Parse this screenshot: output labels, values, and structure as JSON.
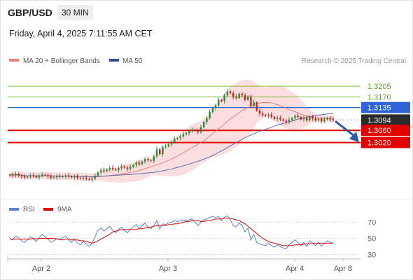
{
  "header": {
    "pair": "GBP/USD",
    "timeframe": "30 MIN",
    "timestamp": "Friday, April 4, 2025 7:11:55 AM CET"
  },
  "legend": {
    "ma20_label": "MA 20 + Bollinger Bands",
    "ma50_label": "MA 50",
    "credit": "Research © 2025 Trading Central"
  },
  "colors": {
    "bull_candle": "#2e8b3a",
    "bear_candle": "#c62828",
    "bollinger_fill": "#fcdada",
    "ma20": "#f08080",
    "ma50": "#5a6fb5",
    "target_green": "#7cc13a",
    "pivot_blue": "#2f63d6",
    "support_red": "#e00000",
    "rsi": "#5b84d6",
    "rsi_ma": "#e00000",
    "arrow": "#2f5aa8"
  },
  "chart_data": [
    {
      "type": "candlestick",
      "title": "",
      "ylim": [
        1.284,
        1.3265
      ],
      "x_ticks": [
        "Apr 2",
        "Apr 3",
        "Apr 4",
        "Apr 8"
      ],
      "price_levels": [
        {
          "label": "1.3205",
          "value": 1.3205,
          "kind": "resistance"
        },
        {
          "label": "1.3170",
          "value": 1.317,
          "kind": "resistance"
        },
        {
          "label": "1.3135",
          "value": 1.3135,
          "kind": "pivot"
        },
        {
          "label": "1.3094",
          "value": 1.3094,
          "kind": "last_price"
        },
        {
          "label": "1.3060",
          "value": 1.306,
          "kind": "support"
        },
        {
          "label": "1.3020",
          "value": 1.302,
          "kind": "support"
        }
      ],
      "series": [
        {
          "name": "MA 20 + Bollinger Bands",
          "style": "line+band"
        },
        {
          "name": "MA 50",
          "style": "line"
        }
      ],
      "close": [
        1.2915,
        1.2912,
        1.2917,
        1.2911,
        1.2909,
        1.2905,
        1.2908,
        1.2912,
        1.291,
        1.2906,
        1.2911,
        1.2915,
        1.2913,
        1.2909,
        1.2904,
        1.2906,
        1.291,
        1.2907,
        1.2909,
        1.2912,
        1.2908,
        1.2906,
        1.2909,
        1.2904,
        1.2902,
        1.2905,
        1.2901,
        1.2898,
        1.2902,
        1.2911,
        1.2922,
        1.293,
        1.2926,
        1.2932,
        1.2937,
        1.2933,
        1.293,
        1.2936,
        1.2942,
        1.2938,
        1.2934,
        1.294,
        1.2946,
        1.2954,
        1.2949,
        1.2958,
        1.2966,
        1.2962,
        1.296,
        1.2975,
        1.2998,
        1.2982,
        1.3005,
        1.3008,
        1.3014,
        1.3022,
        1.3032,
        1.3035,
        1.304,
        1.3047,
        1.3051,
        1.3057,
        1.3062,
        1.306,
        1.3055,
        1.307,
        1.3087,
        1.31,
        1.312,
        1.3134,
        1.3142,
        1.316,
        1.3156,
        1.3175,
        1.3188,
        1.3182,
        1.317,
        1.3166,
        1.318,
        1.3175,
        1.316,
        1.3172,
        1.314,
        1.3152,
        1.3125,
        1.3115,
        1.311,
        1.3108,
        1.3112,
        1.3104,
        1.3098,
        1.3101,
        1.3096,
        1.3092,
        1.3087,
        1.3095,
        1.31,
        1.3108,
        1.3104,
        1.3096,
        1.3101,
        1.3093,
        1.3105,
        1.3099,
        1.3093,
        1.3098,
        1.309,
        1.3096,
        1.3101,
        1.3097,
        1.3094
      ]
    },
    {
      "type": "line",
      "title": "",
      "ylim": [
        20,
        80
      ],
      "y_ticks": [
        70,
        50,
        30
      ],
      "x_ticks": [
        "Apr 2",
        "Apr 3",
        "Apr 4",
        "Apr 8"
      ],
      "series": [
        {
          "name": "RSI",
          "values": [
            50,
            48,
            53,
            51,
            47,
            45,
            48,
            52,
            50,
            46,
            51,
            55,
            52,
            49,
            45,
            47,
            50,
            48,
            51,
            53,
            48,
            45,
            49,
            44,
            42,
            46,
            43,
            40,
            44,
            52,
            60,
            63,
            59,
            62,
            65,
            60,
            57,
            61,
            64,
            60,
            57,
            61,
            64,
            67,
            62,
            66,
            69,
            64,
            62,
            66,
            72,
            62,
            68,
            67,
            69,
            70,
            72,
            71,
            72,
            73,
            72,
            73,
            74,
            70,
            66,
            70,
            73,
            74,
            76,
            77,
            76,
            77,
            72,
            76,
            78,
            73,
            66,
            64,
            69,
            66,
            58,
            63,
            48,
            55,
            45,
            43,
            42,
            41,
            44,
            41,
            39,
            42,
            40,
            38,
            37,
            42,
            45,
            48,
            45,
            41,
            45,
            40,
            47,
            44,
            41,
            45,
            40,
            44,
            47,
            45,
            44
          ]
        },
        {
          "name": "9MA",
          "values": [
            49,
            49,
            49,
            49,
            49,
            49,
            49,
            49,
            50,
            49,
            50,
            50,
            50,
            50,
            50,
            50,
            49,
            49,
            48,
            49,
            49,
            48,
            48,
            48,
            47,
            47,
            46,
            45,
            44,
            45,
            47,
            49,
            51,
            53,
            55,
            58,
            59,
            60,
            61,
            61,
            61,
            61,
            61,
            61,
            62,
            62,
            63,
            64,
            64,
            65,
            66,
            66,
            66,
            66,
            67,
            67,
            68,
            68,
            69,
            70,
            71,
            71,
            72,
            72,
            72,
            71,
            71,
            72,
            72,
            73,
            74,
            74,
            74,
            75,
            75,
            75,
            74,
            73,
            72,
            70,
            68,
            65,
            62,
            59,
            56,
            53,
            50,
            48,
            46,
            45,
            44,
            43,
            42,
            41,
            41,
            41,
            41,
            42,
            42,
            42,
            43,
            43,
            43,
            44,
            44,
            44,
            44,
            44,
            44,
            44,
            44
          ]
        }
      ]
    }
  ]
}
